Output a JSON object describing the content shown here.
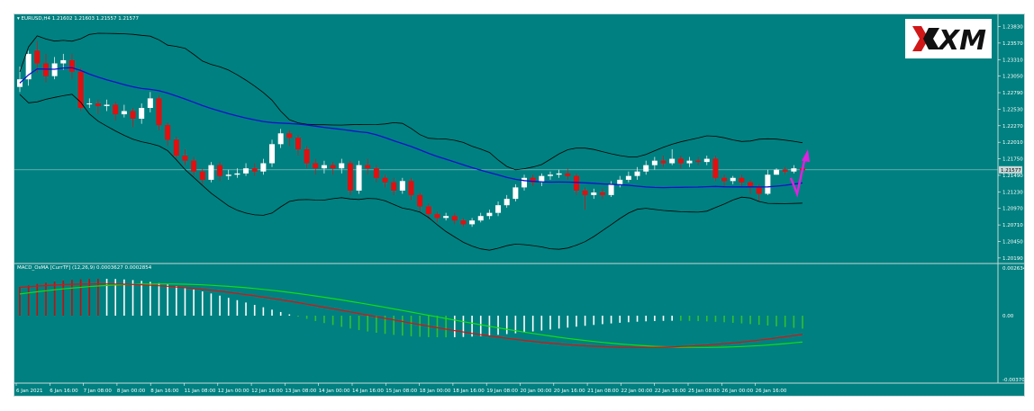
{
  "main_chart": {
    "header": "EURUSD,H4  1.21602 1.21603 1.21557 1.21577",
    "price_labels": [
      "1.23830",
      "1.23570",
      "1.23310",
      "1.23050",
      "1.22790",
      "1.22530",
      "1.22270",
      "1.22010",
      "1.21750",
      "1.21490",
      "1.21230",
      "1.20970",
      "1.20710",
      "1.20450",
      "1.20190"
    ],
    "current_price": "1.21577"
  },
  "indicator": {
    "header": "MACD_OsMA [CurrTF] (12,26,9) 0.0003627 0.0002854",
    "labels": [
      "0.002634",
      "0.00",
      "-0.003706"
    ]
  },
  "time_axis": [
    "6 Jan 2021",
    "6 Jan 16:00",
    "7 Jan 08:00",
    "8 Jan 00:00",
    "8 Jan 16:00",
    "11 Jan 08:00",
    "12 Jan 00:00",
    "12 Jan 16:00",
    "13 Jan 08:00",
    "14 Jan 00:00",
    "14 Jan 16:00",
    "15 Jan 08:00",
    "18 Jan 00:00",
    "18 Jan 16:00",
    "19 Jan 08:00",
    "20 Jan 00:00",
    "20 Jan 16:00",
    "21 Jan 08:00",
    "22 Jan 00:00",
    "22 Jan 16:00",
    "25 Jan 08:00",
    "26 Jan 00:00",
    "26 Jan 16:00"
  ],
  "logo": {
    "text": "XM"
  },
  "colors": {
    "background": "#008080",
    "bull": "#ffffff",
    "bear": "#e01010",
    "bollinger": "#000000",
    "moving_average": "#1010d0",
    "macd_fast": "#e01010",
    "macd_signal": "#10e010",
    "hist_up_pos": "#c01010",
    "hist_down_pos": "#ffffff",
    "hist_down_neg": "#30c030",
    "hist_up_neg": "#ffffff",
    "arrow": "#e020e0"
  },
  "icons": [
    "dropdown-triangle-icon",
    "projection-arrow-icon",
    "xm-logo"
  ]
}
